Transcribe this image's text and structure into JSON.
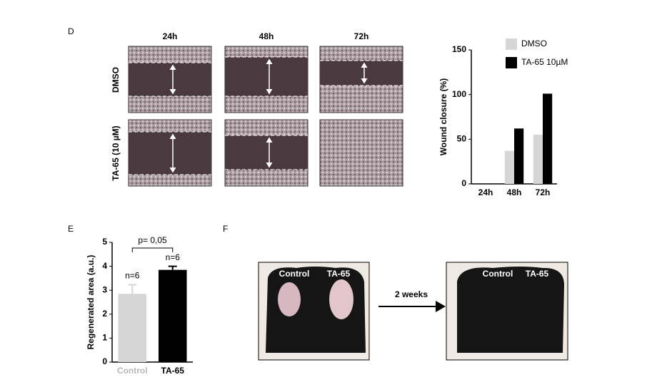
{
  "panels": {
    "d": "D",
    "e": "E",
    "f": "F"
  },
  "micrographs": {
    "times": [
      "24h",
      "48h",
      "72h"
    ],
    "rows": [
      "DMSO",
      "TA-65 (10 µM)"
    ]
  },
  "photos": {
    "before": [
      "Control",
      "TA-65"
    ],
    "after": [
      "Control",
      "TA-65"
    ],
    "arrow": "2 weeks"
  },
  "chart_data": [
    {
      "type": "bar",
      "ylabel": "Wound closure (%)",
      "categories": [
        "24h",
        "48h",
        "72h"
      ],
      "series": [
        {
          "name": "DMSO",
          "color": "#d6d6d6",
          "values": [
            0,
            37,
            55
          ]
        },
        {
          "name": "TA-65 10µM",
          "color": "#000000",
          "values": [
            0,
            62,
            101
          ]
        }
      ],
      "ylim": [
        0,
        150
      ],
      "yticks": [
        0,
        50,
        100,
        150
      ],
      "legend": "upper right"
    },
    {
      "type": "bar",
      "ylabel": "Regenerated area (a.u.)",
      "categories": [
        "Control",
        "TA-65"
      ],
      "values": [
        2.85,
        3.85
      ],
      "errors": [
        0.38,
        0.15
      ],
      "colors": [
        "#d6d6d6",
        "#000000"
      ],
      "annotations": [
        "n=6",
        "n=6"
      ],
      "bracket": "p= 0,05",
      "ylim": [
        0,
        5
      ],
      "yticks": [
        0,
        1,
        2,
        3,
        4,
        5
      ]
    }
  ]
}
